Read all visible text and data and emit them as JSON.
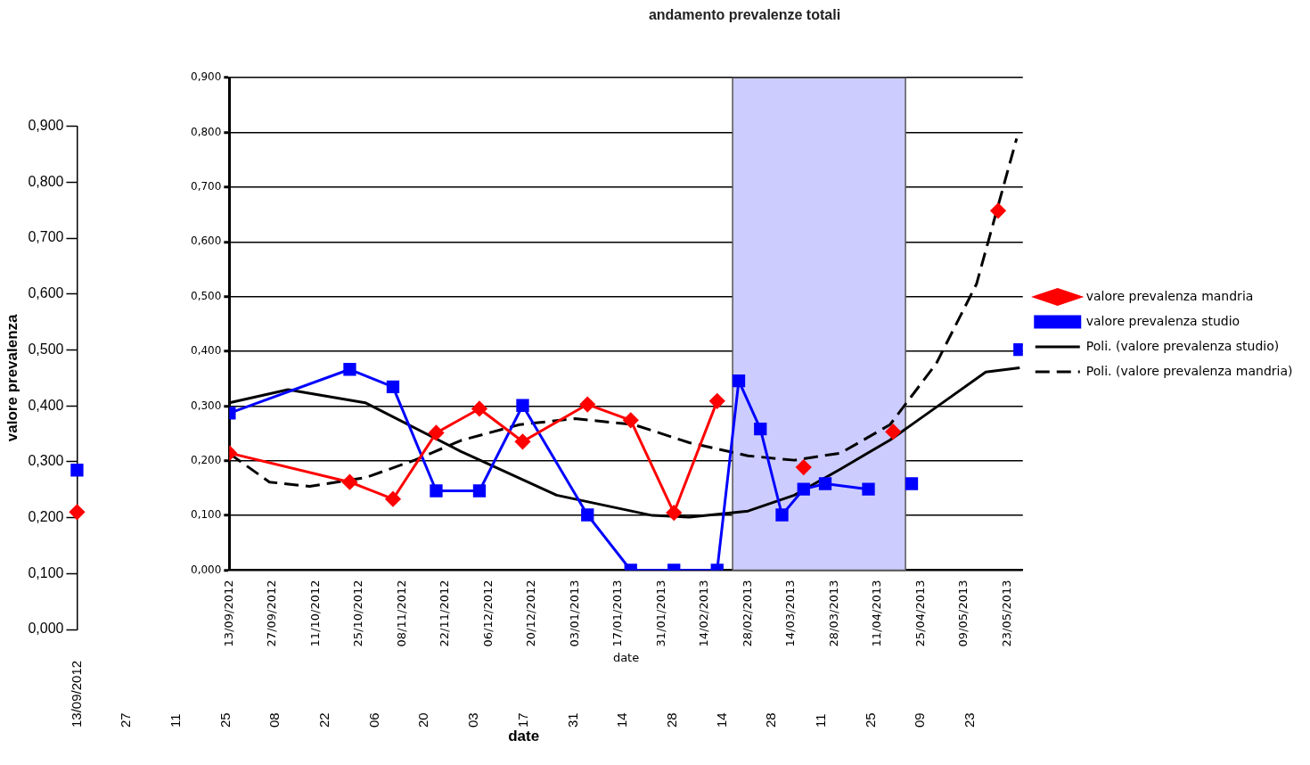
{
  "chart_data": [
    {
      "type": "line",
      "ylabel": "valore prevalenza",
      "xlabel": "date",
      "categories": [
        "13/09/2012",
        "27",
        "11",
        "25",
        "08",
        "22",
        "06",
        "20",
        "03",
        "17",
        "31",
        "14",
        "28",
        "14",
        "28",
        "11",
        "25",
        "09",
        "23"
      ],
      "ylim": [
        0,
        0.9
      ],
      "yticks": [
        {
          "value": 0,
          "label": "0,000"
        },
        {
          "value": 0.1,
          "label": "0,100"
        },
        {
          "value": 0.2,
          "label": "0,200"
        },
        {
          "value": 0.3,
          "label": "0,300"
        },
        {
          "value": 0.4,
          "label": "0,400"
        },
        {
          "value": 0.5,
          "label": "0,500"
        },
        {
          "value": 0.6,
          "label": "0,600"
        },
        {
          "value": 0.7,
          "label": "0,700"
        },
        {
          "value": 0.8,
          "label": "0,800"
        },
        {
          "value": 0.9,
          "label": "0,900"
        }
      ],
      "grid": false,
      "legend": false,
      "series": [
        {
          "type": "line",
          "color": "#ff0000",
          "marker": "diamond",
          "values": [
            0.21,
            null,
            null,
            null,
            null,
            null,
            null,
            null,
            null,
            null,
            null,
            null,
            null,
            null,
            null,
            null,
            null,
            null,
            null
          ]
        },
        {
          "type": "line",
          "color": "#0000ff",
          "marker": "square",
          "values": [
            0.285,
            null,
            null,
            null,
            null,
            null,
            null,
            null,
            null,
            null,
            null,
            null,
            null,
            null,
            null,
            null,
            null,
            null,
            null
          ]
        }
      ]
    },
    {
      "type": "line",
      "title": "andamento prevalenze totali",
      "xlabel": "date",
      "xlim": [
        "2012-09-13",
        "2013-05-28"
      ],
      "xticks": [
        {
          "value": "2012-09-13",
          "label": "13/09/2012"
        },
        {
          "value": "2012-09-27",
          "label": "27/09/2012"
        },
        {
          "value": "2012-10-11",
          "label": "11/10/2012"
        },
        {
          "value": "2012-10-25",
          "label": "25/10/2012"
        },
        {
          "value": "2012-11-08",
          "label": "08/11/2012"
        },
        {
          "value": "2012-11-22",
          "label": "22/11/2012"
        },
        {
          "value": "2012-12-06",
          "label": "06/12/2012"
        },
        {
          "value": "2012-12-20",
          "label": "20/12/2012"
        },
        {
          "value": "2013-01-03",
          "label": "03/01/2013"
        },
        {
          "value": "2013-01-17",
          "label": "17/01/2013"
        },
        {
          "value": "2013-01-31",
          "label": "31/01/2013"
        },
        {
          "value": "2013-02-14",
          "label": "14/02/2013"
        },
        {
          "value": "2013-02-28",
          "label": "28/02/2013"
        },
        {
          "value": "2013-03-14",
          "label": "14/03/2013"
        },
        {
          "value": "2013-03-28",
          "label": "28/03/2013"
        },
        {
          "value": "2013-04-11",
          "label": "11/04/2013"
        },
        {
          "value": "2013-04-25",
          "label": "25/04/2013"
        },
        {
          "value": "2013-05-09",
          "label": "09/05/2013"
        },
        {
          "value": "2013-05-23",
          "label": "23/05/2013"
        }
      ],
      "ylim": [
        0,
        0.9
      ],
      "yticks": [
        {
          "value": 0,
          "label": "0,000"
        },
        {
          "value": 0.1,
          "label": "0,100"
        },
        {
          "value": 0.2,
          "label": "0,200"
        },
        {
          "value": 0.3,
          "label": "0,300"
        },
        {
          "value": 0.4,
          "label": "0,400"
        },
        {
          "value": 0.5,
          "label": "0,500"
        },
        {
          "value": 0.6,
          "label": "0,600"
        },
        {
          "value": 0.7,
          "label": "0,700"
        },
        {
          "value": 0.8,
          "label": "0,800"
        },
        {
          "value": 0.9,
          "label": "0,900"
        }
      ],
      "grid": "y",
      "legend": "right",
      "bands": [
        {
          "axis": "x",
          "from": "2013-02-23",
          "to": "2013-04-20",
          "color": "#ccccff"
        }
      ],
      "series": [
        {
          "name": "valore prevalenza mandria",
          "type": "line",
          "color": "#ff0000",
          "marker": "diamond",
          "x": [
            "2012-09-13",
            "2012-10-22",
            "2012-11-05",
            "2012-11-19",
            "2012-12-03",
            "2012-12-17",
            "2013-01-07",
            "2013-01-21",
            "2013-02-04",
            "2013-02-18",
            "2013-03-04",
            "2013-03-18",
            "2013-04-01",
            "2013-04-16",
            "2013-05-04",
            "2013-05-20"
          ],
          "values": [
            0.214,
            0.161,
            0.13,
            0.251,
            0.295,
            0.235,
            0.303,
            0.274,
            0.105,
            0.309,
            null,
            0.188,
            null,
            0.253,
            null,
            0.657
          ]
        },
        {
          "name": "valore prevalenza studio",
          "type": "line",
          "color": "#0000ff",
          "marker": "square",
          "x": [
            "2012-09-13",
            "2012-10-22",
            "2012-11-05",
            "2012-11-19",
            "2012-12-03",
            "2012-12-17",
            "2013-01-07",
            "2013-01-21",
            "2013-02-04",
            "2013-02-18",
            "2013-02-25",
            "2013-03-04",
            "2013-03-11",
            "2013-03-18",
            "2013-03-25",
            "2013-04-08",
            "2013-04-15",
            "2013-04-22",
            "2013-05-13",
            "2013-05-27"
          ],
          "values": [
            0.287,
            0.367,
            0.335,
            0.145,
            0.145,
            0.301,
            0.101,
            0,
            0,
            0,
            0.346,
            0.258,
            0.101,
            0.148,
            0.158,
            0.148,
            null,
            0.158,
            null,
            0.403
          ]
        },
        {
          "name": "Poli. (valore prevalenza studio)",
          "type": "line",
          "color": "#000000",
          "marker": "none",
          "line_style": "solid",
          "x": [
            "2012-09-13",
            "2012-10-02",
            "2012-10-27",
            "2012-11-27",
            "2012-12-28",
            "2013-01-28",
            "2013-02-09",
            "2013-02-28",
            "2013-03-15",
            "2013-03-30",
            "2013-04-15",
            "2013-04-30",
            "2013-05-16",
            "2013-05-27"
          ],
          "values": [
            0.306,
            0.33,
            0.306,
            0.217,
            0.137,
            0.1,
            0.097,
            0.108,
            0.137,
            0.185,
            0.238,
            0.298,
            0.362,
            0.37
          ]
        },
        {
          "name": "Poli. (valore prevalenza mandria)",
          "type": "line",
          "color": "#000000",
          "marker": "none",
          "line_style": "dashed",
          "x": [
            "2012-09-13",
            "2012-09-26",
            "2012-10-09",
            "2012-10-27",
            "2012-11-12",
            "2012-11-27",
            "2012-12-16",
            "2013-01-03",
            "2013-01-22",
            "2013-02-09",
            "2013-02-28",
            "2013-03-15",
            "2013-03-30",
            "2013-04-15",
            "2013-04-30",
            "2013-05-13",
            "2013-05-26"
          ],
          "values": [
            0.213,
            0.161,
            0.153,
            0.169,
            0.201,
            0.237,
            0.266,
            0.277,
            0.266,
            0.233,
            0.209,
            0.201,
            0.214,
            0.266,
            0.378,
            0.523,
            0.789
          ]
        }
      ]
    }
  ]
}
